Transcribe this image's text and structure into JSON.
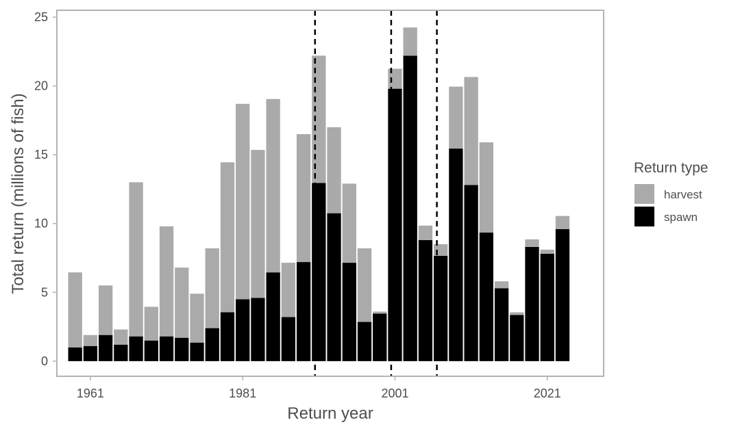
{
  "chart_data": {
    "type": "bar",
    "stacked": true,
    "xlabel": "Return year",
    "ylabel": "Total return (millions of fish)",
    "x_ticks": [
      1961,
      1981,
      2001,
      2021
    ],
    "y_ticks": [
      0,
      5,
      10,
      15,
      20,
      25
    ],
    "xlim": [
      1956.6,
      2028.4
    ],
    "ylim": [
      -1.1,
      25.5
    ],
    "grid": false,
    "vlines": [
      1990.5,
      2000.5,
      2006.5
    ],
    "legend": {
      "title": "Return type",
      "position": "right",
      "entries": [
        {
          "label": "harvest",
          "color": "#aaaaaa"
        },
        {
          "label": "spawn",
          "color": "#000000"
        }
      ]
    },
    "years": [
      1959,
      1961,
      1963,
      1965,
      1967,
      1969,
      1971,
      1973,
      1975,
      1977,
      1979,
      1981,
      1983,
      1985,
      1987,
      1989,
      1991,
      1993,
      1995,
      1997,
      1999,
      2001,
      2003,
      2005,
      2007,
      2009,
      2011,
      2013,
      2015,
      2017,
      2019,
      2021,
      2023
    ],
    "series": [
      {
        "name": "spawn",
        "color": "#000000",
        "values": [
          1.0,
          1.1,
          1.9,
          1.2,
          1.8,
          1.5,
          1.8,
          1.7,
          1.35,
          2.4,
          3.55,
          4.5,
          4.6,
          6.45,
          3.2,
          7.2,
          12.95,
          10.75,
          7.15,
          2.85,
          3.45,
          19.8,
          22.2,
          8.8,
          7.65,
          15.45,
          12.8,
          9.35,
          5.3,
          3.35,
          8.3,
          7.8,
          9.6
        ]
      },
      {
        "name": "harvest",
        "color": "#aaaaaa",
        "values": [
          5.45,
          0.8,
          3.6,
          1.1,
          11.2,
          2.45,
          8.0,
          5.1,
          3.55,
          5.8,
          10.9,
          14.2,
          10.75,
          12.6,
          3.95,
          9.3,
          9.25,
          6.25,
          5.75,
          5.35,
          0.15,
          1.45,
          2.05,
          1.05,
          0.85,
          4.5,
          7.85,
          6.55,
          0.5,
          0.2,
          0.55,
          0.3,
          0.95
        ]
      }
    ]
  }
}
